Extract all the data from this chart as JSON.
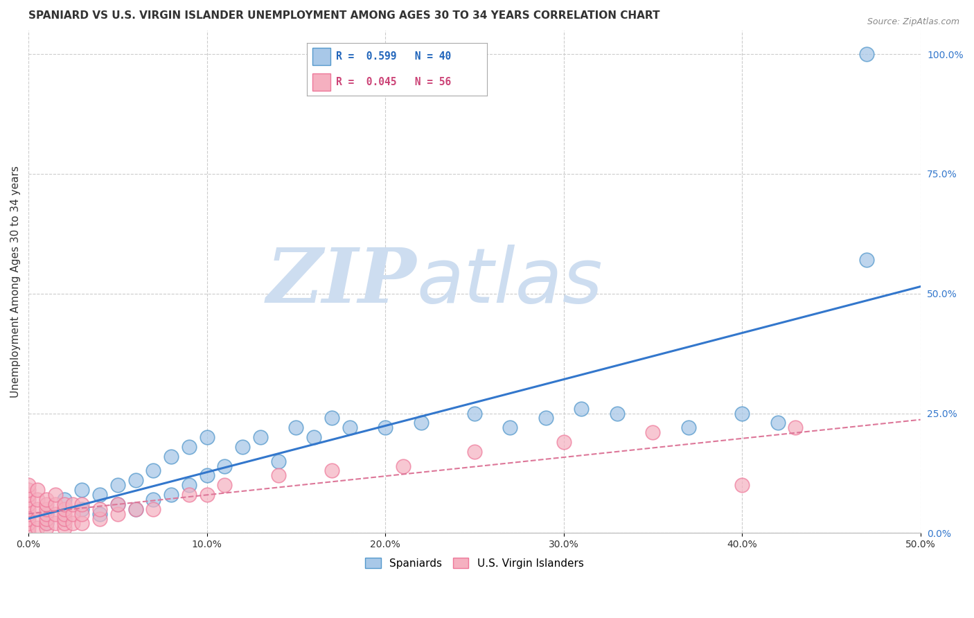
{
  "title": "SPANIARD VS U.S. VIRGIN ISLANDER UNEMPLOYMENT AMONG AGES 30 TO 34 YEARS CORRELATION CHART",
  "source": "Source: ZipAtlas.com",
  "ylabel": "Unemployment Among Ages 30 to 34 years",
  "xlim": [
    0.0,
    0.5
  ],
  "ylim": [
    0.0,
    1.05
  ],
  "xtick_labels": [
    "0.0%",
    "10.0%",
    "20.0%",
    "30.0%",
    "40.0%",
    "50.0%"
  ],
  "xtick_vals": [
    0.0,
    0.1,
    0.2,
    0.3,
    0.4,
    0.5
  ],
  "ytick_labels_right": [
    "0.0%",
    "25.0%",
    "50.0%",
    "75.0%",
    "100.0%"
  ],
  "ytick_vals_right": [
    0.0,
    0.25,
    0.5,
    0.75,
    1.0
  ],
  "grid_color": "#cccccc",
  "background_color": "#ffffff",
  "watermark_zip": "ZIP",
  "watermark_atlas": "atlas",
  "watermark_color": "#cdddf0",
  "spaniard_color": "#a8c8e8",
  "spaniard_edge": "#5599cc",
  "usvi_color": "#f5b0c0",
  "usvi_edge": "#ee7799",
  "trendline1_color": "#3377cc",
  "trendline2_color": "#dd7799",
  "spaniard_x": [
    0.01,
    0.01,
    0.02,
    0.02,
    0.03,
    0.03,
    0.04,
    0.04,
    0.05,
    0.05,
    0.06,
    0.06,
    0.07,
    0.07,
    0.08,
    0.08,
    0.09,
    0.09,
    0.1,
    0.1,
    0.11,
    0.12,
    0.13,
    0.14,
    0.15,
    0.16,
    0.17,
    0.18,
    0.2,
    0.22,
    0.25,
    0.27,
    0.29,
    0.31,
    0.33,
    0.37,
    0.4,
    0.42,
    0.47,
    0.47
  ],
  "spaniard_y": [
    0.02,
    0.04,
    0.03,
    0.07,
    0.05,
    0.09,
    0.04,
    0.08,
    0.06,
    0.1,
    0.05,
    0.11,
    0.07,
    0.13,
    0.08,
    0.16,
    0.1,
    0.18,
    0.12,
    0.2,
    0.14,
    0.18,
    0.2,
    0.15,
    0.22,
    0.2,
    0.24,
    0.22,
    0.22,
    0.23,
    0.25,
    0.22,
    0.24,
    0.26,
    0.25,
    0.22,
    0.25,
    0.23,
    0.57,
    1.0
  ],
  "usvi_x": [
    0.0,
    0.0,
    0.0,
    0.0,
    0.0,
    0.0,
    0.0,
    0.0,
    0.0,
    0.0,
    0.0,
    0.005,
    0.005,
    0.005,
    0.005,
    0.005,
    0.01,
    0.01,
    0.01,
    0.01,
    0.01,
    0.01,
    0.01,
    0.015,
    0.015,
    0.015,
    0.015,
    0.02,
    0.02,
    0.02,
    0.02,
    0.02,
    0.02,
    0.025,
    0.025,
    0.025,
    0.03,
    0.03,
    0.03,
    0.04,
    0.04,
    0.05,
    0.05,
    0.06,
    0.07,
    0.09,
    0.1,
    0.11,
    0.14,
    0.17,
    0.21,
    0.25,
    0.3,
    0.35,
    0.4,
    0.43
  ],
  "usvi_y": [
    0.0,
    0.01,
    0.02,
    0.03,
    0.04,
    0.05,
    0.06,
    0.07,
    0.08,
    0.09,
    0.1,
    0.01,
    0.03,
    0.05,
    0.07,
    0.09,
    0.01,
    0.02,
    0.03,
    0.04,
    0.05,
    0.06,
    0.07,
    0.02,
    0.04,
    0.06,
    0.08,
    0.01,
    0.02,
    0.03,
    0.04,
    0.05,
    0.06,
    0.02,
    0.04,
    0.06,
    0.02,
    0.04,
    0.06,
    0.03,
    0.05,
    0.04,
    0.06,
    0.05,
    0.05,
    0.08,
    0.08,
    0.1,
    0.12,
    0.13,
    0.14,
    0.17,
    0.19,
    0.21,
    0.1,
    0.22
  ],
  "legend_text1": "R =  0.599   N = 40",
  "legend_text2": "R =  0.045   N = 56"
}
